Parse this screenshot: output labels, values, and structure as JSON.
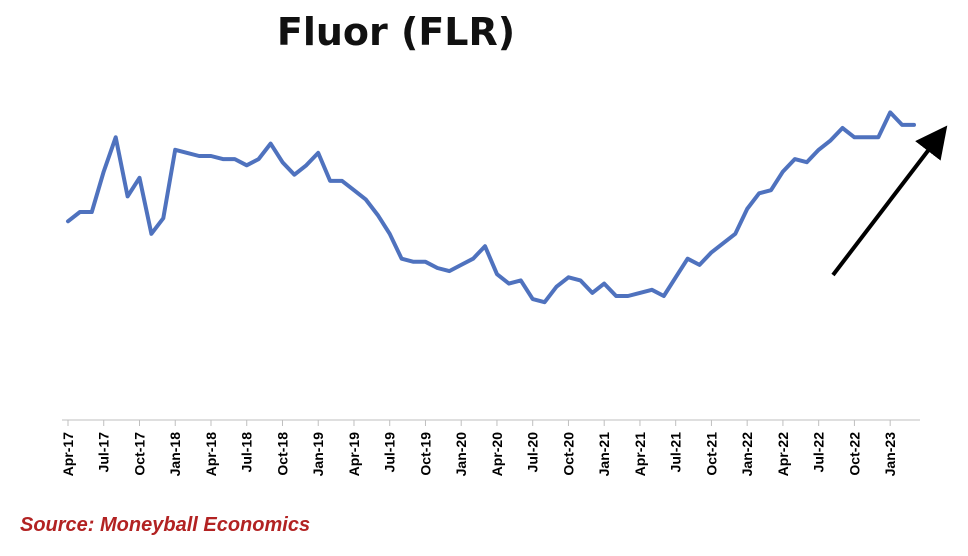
{
  "chart_data": {
    "type": "line",
    "title": "Fluor (FLR)",
    "xlabel": "",
    "ylabel": "",
    "x_ticks": [
      "Apr-17",
      "Jul-17",
      "Oct-17",
      "Jan-18",
      "Apr-18",
      "Jul-18",
      "Oct-18",
      "Jan-19",
      "Apr-19",
      "Jul-19",
      "Oct-19",
      "Jan-20",
      "Apr-20",
      "Jul-20",
      "Oct-20",
      "Jan-21",
      "Apr-21",
      "Jul-21",
      "Oct-21",
      "Jan-22",
      "Apr-22",
      "Jul-22",
      "Oct-22",
      "Jan-23"
    ],
    "y_axis_visible": false,
    "grid": false,
    "series": [
      {
        "color": "#4f72be",
        "x": [
          "Apr-17",
          "May-17",
          "Jun-17",
          "Jul-17",
          "Aug-17",
          "Sep-17",
          "Oct-17",
          "Nov-17",
          "Dec-17",
          "Jan-18",
          "Feb-18",
          "Mar-18",
          "Apr-18",
          "May-18",
          "Jun-18",
          "Jul-18",
          "Aug-18",
          "Sep-18",
          "Oct-18",
          "Nov-18",
          "Dec-18",
          "Jan-19",
          "Feb-19",
          "Mar-19",
          "Apr-19",
          "May-19",
          "Jun-19",
          "Jul-19",
          "Aug-19",
          "Sep-19",
          "Oct-19",
          "Nov-19",
          "Dec-19",
          "Jan-20",
          "Feb-20",
          "Mar-20",
          "Apr-20",
          "May-20",
          "Jun-20",
          "Jul-20",
          "Aug-20",
          "Sep-20",
          "Oct-20",
          "Nov-20",
          "Dec-20",
          "Jan-21",
          "Feb-21",
          "Mar-21",
          "Apr-21",
          "May-21",
          "Jun-21",
          "Jul-21",
          "Aug-21",
          "Sep-21",
          "Oct-21",
          "Nov-21",
          "Dec-21",
          "Jan-22",
          "Feb-22",
          "Mar-22",
          "Apr-22",
          "May-22",
          "Jun-22",
          "Jul-22",
          "Aug-22",
          "Sep-22",
          "Oct-22",
          "Nov-22",
          "Dec-22",
          "Jan-23",
          "Feb-23",
          "Mar-23"
        ],
        "values": [
          51,
          54,
          54,
          67,
          78,
          59,
          65,
          47,
          52,
          74,
          73,
          72,
          72,
          71,
          71,
          69,
          71,
          76,
          70,
          66,
          69,
          73,
          64,
          64,
          61,
          58,
          53,
          47,
          39,
          38,
          38,
          36,
          35,
          37,
          39,
          43,
          34,
          31,
          32,
          26,
          25,
          30,
          33,
          32,
          28,
          31,
          27,
          27,
          28,
          29,
          27,
          33,
          39,
          37,
          41,
          44,
          47,
          55,
          60,
          61,
          67,
          71,
          70,
          74,
          77,
          81,
          78,
          78,
          78,
          86,
          82,
          82
        ]
      }
    ],
    "annotations": [
      {
        "type": "arrow",
        "color": "#000000",
        "direction": "up-right"
      }
    ],
    "source": "Source: Moneyball Economics"
  }
}
